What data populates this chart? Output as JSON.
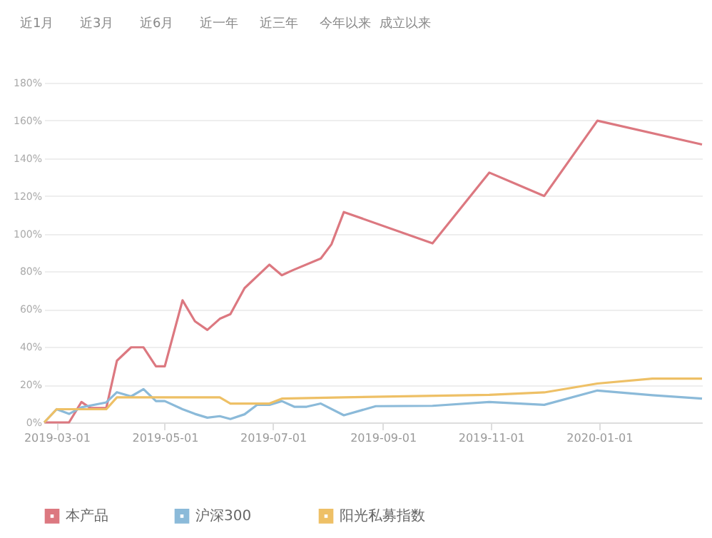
{
  "chart_data": {
    "type": "line",
    "annotations": [
      "近1月",
      "近3月",
      "近6月",
      "近一年",
      "近三年",
      "今年以来",
      "成立以来"
    ],
    "xlim": [
      "2019-02-22",
      "2020-02-28"
    ],
    "xticks": [
      "2019-03-01",
      "2019-05-01",
      "2019-07-01",
      "2019-09-01",
      "2019-11-01",
      "2020-01-01"
    ],
    "ylim": [
      0,
      180
    ],
    "yticks": [
      {
        "value": 0,
        "label": "0%"
      },
      {
        "value": 20,
        "label": "20%"
      },
      {
        "value": 40,
        "label": "40%"
      },
      {
        "value": 60,
        "label": "60%"
      },
      {
        "value": 80,
        "label": "80%"
      },
      {
        "value": 100,
        "label": "100%"
      },
      {
        "value": 120,
        "label": "120%"
      },
      {
        "value": 140,
        "label": "140%"
      },
      {
        "value": 160,
        "label": "160%"
      },
      {
        "value": 180,
        "label": "180%"
      }
    ],
    "grid": "y",
    "legend": "bottom",
    "marker": "none",
    "line_style": "solid",
    "series": [
      {
        "name": "本产品",
        "color": "#dc7880",
        "x": [
          "2019-02-22",
          "2019-03-08",
          "2019-03-15",
          "2019-03-20",
          "2019-03-29",
          "2019-04-04",
          "2019-04-12",
          "2019-04-19",
          "2019-04-26",
          "2019-05-01",
          "2019-05-11",
          "2019-05-18",
          "2019-05-25",
          "2019-06-01",
          "2019-06-07",
          "2019-06-15",
          "2019-06-29",
          "2019-07-06",
          "2019-07-12",
          "2019-07-28",
          "2019-08-03",
          "2019-08-10",
          "2019-09-29",
          "2019-10-31",
          "2019-12-01",
          "2019-12-31",
          "2020-02-28"
        ],
        "values": [
          0,
          0,
          10.8,
          7.6,
          7.6,
          32.7,
          39.8,
          39.8,
          29.7,
          29.7,
          64.7,
          53.6,
          49,
          54.9,
          57.4,
          71.2,
          83.6,
          78,
          80.6,
          86.9,
          94.4,
          111.5,
          94.9,
          132.4,
          120,
          159.9,
          147.3
        ]
      },
      {
        "name": "沪深300",
        "color": "#8bbad9",
        "x": [
          "2019-02-22",
          "2019-03-01",
          "2019-03-08",
          "2019-03-15",
          "2019-03-29",
          "2019-04-04",
          "2019-04-12",
          "2019-04-19",
          "2019-04-26",
          "2019-05-01",
          "2019-05-11",
          "2019-05-18",
          "2019-05-25",
          "2019-06-01",
          "2019-06-07",
          "2019-06-15",
          "2019-06-22",
          "2019-06-29",
          "2019-07-06",
          "2019-07-13",
          "2019-07-20",
          "2019-07-28",
          "2019-08-10",
          "2019-08-28",
          "2019-09-29",
          "2019-10-31",
          "2019-12-01",
          "2019-12-31",
          "2020-01-31",
          "2020-02-28"
        ],
        "values": [
          0,
          7,
          4.5,
          8,
          10.6,
          16,
          13.8,
          17.6,
          11.3,
          11.3,
          7,
          4.5,
          2.5,
          3.3,
          1.8,
          4.3,
          9.3,
          9.3,
          11.3,
          8.3,
          8.3,
          10,
          3.8,
          8.6,
          8.8,
          10.8,
          9.3,
          16.9,
          14.4,
          12.6
        ]
      },
      {
        "name": "阳光私募指数",
        "color": "#eec066",
        "x": [
          "2019-02-22",
          "2019-03-01",
          "2019-03-29",
          "2019-04-04",
          "2019-06-01",
          "2019-06-07",
          "2019-06-29",
          "2019-07-06",
          "2019-08-10",
          "2019-10-31",
          "2019-12-01",
          "2019-12-31",
          "2020-01-31",
          "2020-02-28"
        ],
        "values": [
          0,
          7,
          7,
          13.3,
          13.3,
          10,
          10,
          12.6,
          13.3,
          14.6,
          15.9,
          20.6,
          23.2,
          23.2
        ]
      }
    ]
  }
}
